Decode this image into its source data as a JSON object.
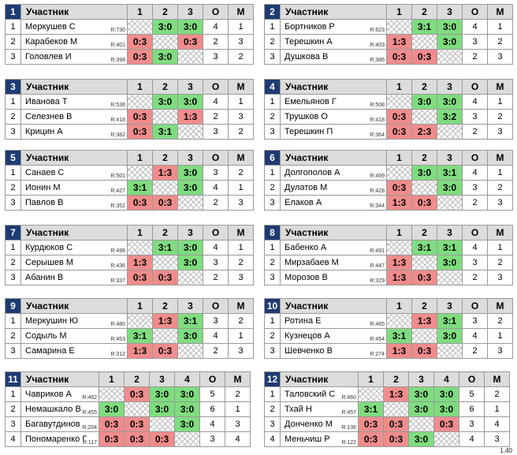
{
  "header_labels": {
    "participant": "Участник",
    "points": "О",
    "place": "М"
  },
  "colors": {
    "win": "#7fdc7f",
    "loss": "#f08c8c",
    "header": "#dcdcdc",
    "group_number": "#1f3b73"
  },
  "footer_note": "1.40",
  "groups": [
    {
      "number": "1",
      "cols": [
        "1",
        "2",
        "3"
      ],
      "rows": [
        {
          "seed": "1",
          "name": "Меркушев С",
          "rating": "R:730",
          "results": [
            "",
            "3:0",
            "3:0"
          ],
          "points": "4",
          "place": "1"
        },
        {
          "seed": "2",
          "name": "Карабеков М",
          "rating": "R:401",
          "results": [
            "0:3",
            "",
            "0:3"
          ],
          "points": "2",
          "place": "3"
        },
        {
          "seed": "3",
          "name": "Головлев И",
          "rating": "R:398",
          "results": [
            "0:3",
            "3:0",
            ""
          ],
          "points": "3",
          "place": "2"
        }
      ]
    },
    {
      "number": "2",
      "cols": [
        "1",
        "2",
        "3"
      ],
      "rows": [
        {
          "seed": "1",
          "name": "Бортников Р",
          "rating": "R:623",
          "results": [
            "",
            "3:1",
            "3:0"
          ],
          "points": "4",
          "place": "1"
        },
        {
          "seed": "2",
          "name": "Терешкин А",
          "rating": "R:403",
          "results": [
            "1:3",
            "",
            "3:0"
          ],
          "points": "3",
          "place": "2"
        },
        {
          "seed": "3",
          "name": "Душкова В",
          "rating": "R:386",
          "results": [
            "0:3",
            "0:3",
            ""
          ],
          "points": "2",
          "place": "3"
        }
      ]
    },
    {
      "number": "3",
      "cols": [
        "1",
        "2",
        "3"
      ],
      "rows": [
        {
          "seed": "1",
          "name": "Иванова Т",
          "rating": "R:536",
          "results": [
            "",
            "3:0",
            "3:0"
          ],
          "points": "4",
          "place": "1"
        },
        {
          "seed": "2",
          "name": "Селезнев В",
          "rating": "R:418",
          "results": [
            "0:3",
            "",
            "1:3"
          ],
          "points": "2",
          "place": "3"
        },
        {
          "seed": "3",
          "name": "Крицин А",
          "rating": "R:382",
          "results": [
            "0:3",
            "3:1",
            ""
          ],
          "points": "3",
          "place": "2"
        }
      ]
    },
    {
      "number": "4",
      "cols": [
        "1",
        "2",
        "3"
      ],
      "rows": [
        {
          "seed": "1",
          "name": "Емельянов Г",
          "rating": "R:508",
          "results": [
            "",
            "3:0",
            "3:0"
          ],
          "points": "4",
          "place": "1"
        },
        {
          "seed": "2",
          "name": "Трушков О",
          "rating": "R:418",
          "results": [
            "0:3",
            "",
            "3:2"
          ],
          "points": "3",
          "place": "2"
        },
        {
          "seed": "3",
          "name": "Терешкин П",
          "rating": "R:364",
          "results": [
            "0:3",
            "2:3",
            ""
          ],
          "points": "2",
          "place": "3"
        }
      ]
    },
    {
      "number": "5",
      "cols": [
        "1",
        "2",
        "3"
      ],
      "rows": [
        {
          "seed": "1",
          "name": "Санаев С",
          "rating": "R:501",
          "results": [
            "",
            "1:3",
            "3:0"
          ],
          "points": "3",
          "place": "2"
        },
        {
          "seed": "2",
          "name": "Ионин М",
          "rating": "R:427",
          "results": [
            "3:1",
            "",
            "3:0"
          ],
          "points": "4",
          "place": "1"
        },
        {
          "seed": "3",
          "name": "Павлов В",
          "rating": "R:352",
          "results": [
            "0:3",
            "0:3",
            ""
          ],
          "points": "2",
          "place": "3"
        }
      ]
    },
    {
      "number": "6",
      "cols": [
        "1",
        "2",
        "3"
      ],
      "rows": [
        {
          "seed": "1",
          "name": "Долгополов А",
          "rating": "R:499",
          "results": [
            "",
            "3:0",
            "3:1"
          ],
          "points": "4",
          "place": "1"
        },
        {
          "seed": "2",
          "name": "Дулатов М",
          "rating": "R:428",
          "results": [
            "0:3",
            "",
            "3:0"
          ],
          "points": "3",
          "place": "2"
        },
        {
          "seed": "3",
          "name": "Елаков А",
          "rating": "R:344",
          "results": [
            "1:3",
            "0:3",
            ""
          ],
          "points": "2",
          "place": "3"
        }
      ]
    },
    {
      "number": "7",
      "cols": [
        "1",
        "2",
        "3"
      ],
      "rows": [
        {
          "seed": "1",
          "name": "Курдюков С",
          "rating": "R:498",
          "results": [
            "",
            "3:1",
            "3:0"
          ],
          "points": "4",
          "place": "1"
        },
        {
          "seed": "2",
          "name": "Серышев М",
          "rating": "R:436",
          "results": [
            "1:3",
            "",
            "3:0"
          ],
          "points": "3",
          "place": "2"
        },
        {
          "seed": "3",
          "name": "Абанин В",
          "rating": "R:337",
          "results": [
            "0:3",
            "0:3",
            ""
          ],
          "points": "2",
          "place": "3"
        }
      ]
    },
    {
      "number": "8",
      "cols": [
        "1",
        "2",
        "3"
      ],
      "rows": [
        {
          "seed": "1",
          "name": "Бабенко А",
          "rating": "R:491",
          "results": [
            "",
            "3:1",
            "3:1"
          ],
          "points": "4",
          "place": "1"
        },
        {
          "seed": "2",
          "name": "Мирзабаев М",
          "rating": "R:447",
          "results": [
            "1:3",
            "",
            "3:0"
          ],
          "points": "3",
          "place": "2"
        },
        {
          "seed": "3",
          "name": "Морозов В",
          "rating": "R:329",
          "results": [
            "1:3",
            "0:3",
            ""
          ],
          "points": "2",
          "place": "3"
        }
      ]
    },
    {
      "number": "9",
      "cols": [
        "1",
        "2",
        "3"
      ],
      "rows": [
        {
          "seed": "1",
          "name": "Меркушин Ю",
          "rating": "R:480",
          "results": [
            "",
            "1:3",
            "3:1"
          ],
          "points": "3",
          "place": "2"
        },
        {
          "seed": "2",
          "name": "Содыль М",
          "rating": "R:453",
          "results": [
            "3:1",
            "",
            "3:0"
          ],
          "points": "4",
          "place": "1"
        },
        {
          "seed": "3",
          "name": "Самарина Е",
          "rating": "R:312",
          "results": [
            "1:3",
            "0:3",
            ""
          ],
          "points": "2",
          "place": "3"
        }
      ]
    },
    {
      "number": "10",
      "cols": [
        "1",
        "2",
        "3"
      ],
      "rows": [
        {
          "seed": "1",
          "name": "Ротина Е",
          "rating": "R:465",
          "results": [
            "",
            "1:3",
            "3:1"
          ],
          "points": "3",
          "place": "2"
        },
        {
          "seed": "2",
          "name": "Кузнецов А",
          "rating": "R:454",
          "results": [
            "3:1",
            "",
            "3:0"
          ],
          "points": "4",
          "place": "1"
        },
        {
          "seed": "3",
          "name": "Шевченко В",
          "rating": "R:274",
          "results": [
            "1:3",
            "0:3",
            ""
          ],
          "points": "2",
          "place": "3"
        }
      ]
    },
    {
      "number": "11",
      "cols": [
        "1",
        "2",
        "3",
        "4"
      ],
      "rows": [
        {
          "seed": "1",
          "name": "Чавриков А",
          "rating": "R:462",
          "results": [
            "",
            "0:3",
            "3:0",
            "3:0"
          ],
          "points": "5",
          "place": "2"
        },
        {
          "seed": "2",
          "name": "Немашкало В",
          "rating": "R:455",
          "results": [
            "3:0",
            "",
            "3:0",
            "3:0"
          ],
          "points": "6",
          "place": "1"
        },
        {
          "seed": "3",
          "name": "Багавутдинов",
          "rating": "R:204",
          "results": [
            "0:3",
            "0:3",
            "",
            "3:0"
          ],
          "points": "4",
          "place": "3"
        },
        {
          "seed": "4",
          "name": "Пономаренко Г",
          "rating": "R:117",
          "results": [
            "0:3",
            "0:3",
            "0:3",
            ""
          ],
          "points": "3",
          "place": "4"
        }
      ]
    },
    {
      "number": "12",
      "cols": [
        "1",
        "2",
        "3",
        "4"
      ],
      "rows": [
        {
          "seed": "1",
          "name": "Таловский С",
          "rating": "R:460",
          "results": [
            "",
            "1:3",
            "3:0",
            "3:0"
          ],
          "points": "5",
          "place": "2"
        },
        {
          "seed": "2",
          "name": "Тхай Н",
          "rating": "R:457",
          "results": [
            "3:1",
            "",
            "3:0",
            "3:0"
          ],
          "points": "6",
          "place": "1"
        },
        {
          "seed": "3",
          "name": "Донченко М",
          "rating": "R:136",
          "results": [
            "0:3",
            "0:3",
            "",
            "0:3"
          ],
          "points": "3",
          "place": "4"
        },
        {
          "seed": "4",
          "name": "Меньчиш Р",
          "rating": "R:122",
          "results": [
            "0:3",
            "0:3",
            "3:0",
            ""
          ],
          "points": "4",
          "place": "3"
        }
      ]
    }
  ]
}
